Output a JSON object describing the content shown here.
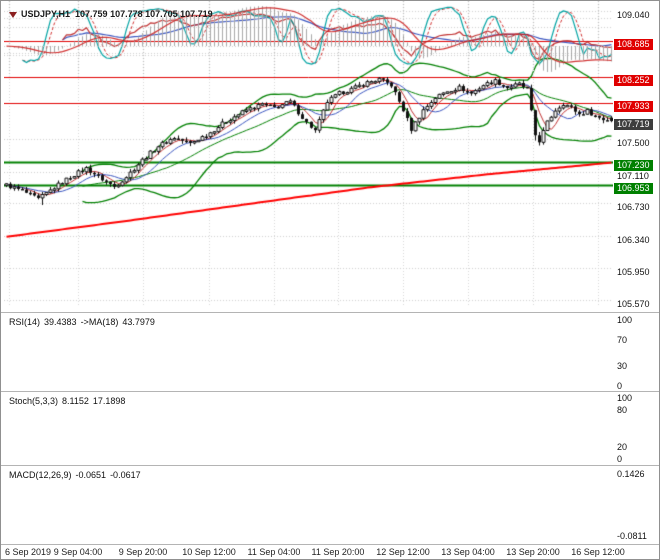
{
  "header": {
    "symbol_timeframe": "USDJPY,H1",
    "ohlc_text": "107.759 107.778 107.705 107.719"
  },
  "chart_data": {
    "type": "candlestick",
    "symbol": "USDJPY",
    "timeframe": "H1",
    "last_ohlc": {
      "open": 107.759,
      "high": 107.778,
      "low": 107.705,
      "close": 107.719
    },
    "bars": 152,
    "y_ticks": [
      {
        "label": "109.040",
        "value": 109.04
      },
      {
        "label": "107.500",
        "value": 107.5
      },
      {
        "label": "107.110",
        "value": 107.11
      },
      {
        "label": "106.730",
        "value": 106.73
      },
      {
        "label": "106.340",
        "value": 106.34
      },
      {
        "label": "105.950",
        "value": 105.95
      },
      {
        "label": "105.570",
        "value": 105.57
      }
    ],
    "levels": [
      {
        "label": "108.685",
        "value": 108.685,
        "color": "#e00000",
        "kind": "resistance"
      },
      {
        "label": "108.252",
        "value": 108.252,
        "color": "#e00000",
        "kind": "resistance"
      },
      {
        "label": "107.933",
        "value": 107.933,
        "color": "#e00000",
        "kind": "resistance"
      },
      {
        "label": "107.230",
        "value": 107.23,
        "color": "#008000",
        "kind": "support"
      },
      {
        "label": "106.953",
        "value": 106.953,
        "color": "#008000",
        "kind": "support"
      }
    ],
    "current_price": {
      "label": "107.719",
      "value": 107.719,
      "bg": "#3d3d3d"
    },
    "x_labels": [
      "6 Sep 2019",
      "9 Sep 04:00",
      "9 Sep 20:00",
      "10 Sep 12:00",
      "11 Sep 04:00",
      "11 Sep 20:00",
      "12 Sep 12:00",
      "13 Sep 04:00",
      "13 Sep 20:00",
      "16 Sep 12:00"
    ],
    "close_waypoints": [
      [
        0,
        106.95
      ],
      [
        4,
        106.88
      ],
      [
        8,
        106.78
      ],
      [
        12,
        106.92
      ],
      [
        16,
        107.05
      ],
      [
        20,
        107.15
      ],
      [
        24,
        107.02
      ],
      [
        27,
        106.93
      ],
      [
        30,
        107.05
      ],
      [
        34,
        107.25
      ],
      [
        38,
        107.42
      ],
      [
        42,
        107.52
      ],
      [
        46,
        107.45
      ],
      [
        51,
        107.58
      ],
      [
        55,
        107.72
      ],
      [
        60,
        107.85
      ],
      [
        64,
        107.92
      ],
      [
        67,
        107.88
      ],
      [
        71,
        107.95
      ],
      [
        75,
        107.7
      ],
      [
        77,
        107.6
      ],
      [
        80,
        107.95
      ],
      [
        83,
        108.05
      ],
      [
        86,
        108.1
      ],
      [
        90,
        108.18
      ],
      [
        93,
        108.22
      ],
      [
        96,
        108.15
      ],
      [
        99,
        107.85
      ],
      [
        101,
        107.62
      ],
      [
        104,
        107.85
      ],
      [
        107,
        108.0
      ],
      [
        110,
        108.08
      ],
      [
        113,
        108.12
      ],
      [
        116,
        108.05
      ],
      [
        119,
        108.15
      ],
      [
        122,
        108.2
      ],
      [
        125,
        108.12
      ],
      [
        128,
        108.16
      ],
      [
        130,
        108.1
      ],
      [
        132,
        107.55
      ],
      [
        133,
        107.48
      ],
      [
        135,
        107.7
      ],
      [
        137,
        107.85
      ],
      [
        139,
        107.93
      ],
      [
        141,
        107.88
      ],
      [
        143,
        107.8
      ],
      [
        145,
        107.84
      ],
      [
        147,
        107.78
      ],
      [
        149,
        107.74
      ],
      [
        151,
        107.72
      ]
    ],
    "low_spikes": [
      {
        "bar": 9,
        "ext": 0.06
      },
      {
        "bar": 132,
        "ext": 0.06
      }
    ],
    "overlays": {
      "bollinger": {
        "period": 20,
        "deviation": 2,
        "color": "#008000"
      },
      "fast_ma": {
        "period": 5,
        "color": "#c03030"
      },
      "mid_ma": {
        "period": 10,
        "color": "#3a55c0"
      },
      "long_ma": {
        "color": "#ff0000",
        "waypoints": [
          [
            0,
            106.33
          ],
          [
            30,
            106.52
          ],
          [
            60,
            106.72
          ],
          [
            90,
            106.92
          ],
          [
            120,
            107.08
          ],
          [
            151,
            107.22
          ]
        ]
      }
    }
  },
  "panels": {
    "rsi": {
      "name": "RSI(14)",
      "value": "39.4383",
      "ma_label": "->MA(18)",
      "ma_value": "43.7979",
      "line_color": "#c03030",
      "ma_color": "#3a55c0",
      "ticks": [
        {
          "label": "100",
          "value": 100
        },
        {
          "label": "70",
          "value": 70
        },
        {
          "label": "30",
          "value": 30
        },
        {
          "label": "0",
          "value": 0
        }
      ],
      "guide_levels": [
        70,
        30
      ]
    },
    "stoch": {
      "name": "Stoch(5,3,3)",
      "value": "8.1152",
      "signal_value": "17.1898",
      "line_color": "#00a3a3",
      "signal_color": "#d03030",
      "ticks": [
        {
          "label": "100",
          "value": 100
        },
        {
          "label": "80",
          "value": 80
        },
        {
          "label": "20",
          "value": 20
        },
        {
          "label": "0",
          "value": 0
        }
      ],
      "guide_levels": [
        80,
        20
      ]
    },
    "macd": {
      "name": "MACD(12,26,9)",
      "value": "-0.0651",
      "signal_value": "-0.0617",
      "hist_color": "#a8a8a8",
      "signal_color": "#d03030",
      "ticks": [
        {
          "label": "0.1426",
          "pos": "top"
        },
        {
          "label": "-0.0811",
          "pos": "bottom"
        }
      ]
    }
  }
}
